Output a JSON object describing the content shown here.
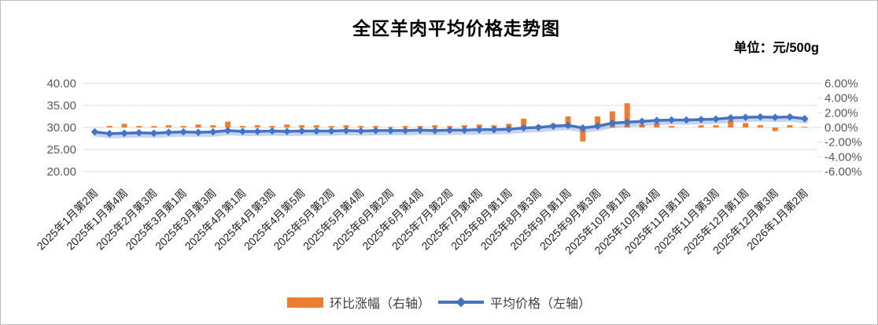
{
  "title": "全区羊肉平均价格走势图",
  "unit_label": "单位：元/500g",
  "legend": [
    {
      "label": "环比涨幅（右轴）",
      "color": "#ED7D31",
      "type": "bar"
    },
    {
      "label": "平均价格（左轴）",
      "color": "#4472C4",
      "type": "line"
    }
  ],
  "chart_data": {
    "type": "bar",
    "subtype": "combo-bar-line",
    "title": "全区羊肉平均价格走势图",
    "unit": "元/500g",
    "grid": true,
    "legend_position": "bottom",
    "x_labels": [
      "2025年1月第2周",
      "",
      "2025年1月第4周",
      "",
      "2025年2月第3周",
      "",
      "2025年3月第1周",
      "",
      "2025年3月第3周",
      "",
      "2025年4月第1周",
      "",
      "2025年4月第3周",
      "",
      "2025年4月第5周",
      "",
      "2025年5月第2周",
      "",
      "2025年5月第4周",
      "",
      "2025年6月第2周",
      "",
      "2025年6月第4周",
      "",
      "2025年7月第2周",
      "",
      "2025年7月第4周",
      "",
      "2025年8月第1周",
      "",
      "2025年8月第3周",
      "",
      "2025年9月第1周",
      "",
      "2025年9月第3周",
      "",
      "2025年10月第1周",
      "",
      "2025年10月第4周",
      "",
      "2025年11月第1周",
      "",
      "2025年11月第3周",
      "",
      "2025年12月第1周",
      "",
      "2025年12月第3周",
      "",
      "2026年1月第2周"
    ],
    "series": [
      {
        "name": "环比涨幅（右轴）",
        "type": "bar",
        "axis": "right",
        "unit": "%",
        "color": "#ED7D31",
        "values": [
          0.0,
          0.2,
          0.5,
          0.2,
          0.2,
          0.3,
          0.2,
          0.4,
          0.3,
          0.8,
          0.2,
          0.3,
          0.2,
          0.4,
          0.3,
          0.3,
          0.2,
          0.3,
          0.2,
          0.2,
          0.1,
          0.2,
          0.2,
          0.3,
          0.2,
          0.3,
          0.4,
          0.3,
          0.5,
          1.2,
          0.3,
          0.5,
          1.5,
          -1.9,
          1.5,
          2.2,
          3.3,
          0.4,
          0.6,
          0.2,
          0.0,
          0.3,
          0.3,
          1.0,
          0.6,
          0.3,
          -0.5,
          0.3,
          0.1
        ]
      },
      {
        "name": "平均价格（左轴）",
        "type": "line",
        "axis": "left",
        "unit": "元/500g",
        "color": "#4472C4",
        "values": [
          29.0,
          28.6,
          28.7,
          28.8,
          28.7,
          28.9,
          29.0,
          28.9,
          29.0,
          29.3,
          29.1,
          29.1,
          29.2,
          29.1,
          29.2,
          29.2,
          29.2,
          29.3,
          29.2,
          29.3,
          29.3,
          29.3,
          29.4,
          29.3,
          29.4,
          29.4,
          29.5,
          29.5,
          29.6,
          29.9,
          30.0,
          30.3,
          30.5,
          29.9,
          30.3,
          31.0,
          31.2,
          31.4,
          31.6,
          31.7,
          31.7,
          31.8,
          31.9,
          32.2,
          32.3,
          32.4,
          32.3,
          32.4,
          32.0
        ]
      }
    ],
    "left_axis": {
      "min": 20,
      "max": 40,
      "ticks": [
        "40.00",
        "35.00",
        "30.00",
        "25.00",
        "20.00"
      ]
    },
    "right_axis": {
      "min": -6,
      "max": 6,
      "ticks": [
        "6.00%",
        "4.00%",
        "2.00%",
        "0.00%",
        "-2.00%",
        "-4.00%",
        "-6.00%"
      ]
    }
  },
  "colors": {
    "gridline": "#D9D9D9",
    "axis_text": "#595959",
    "x_label_text": "#1F1F1F"
  }
}
